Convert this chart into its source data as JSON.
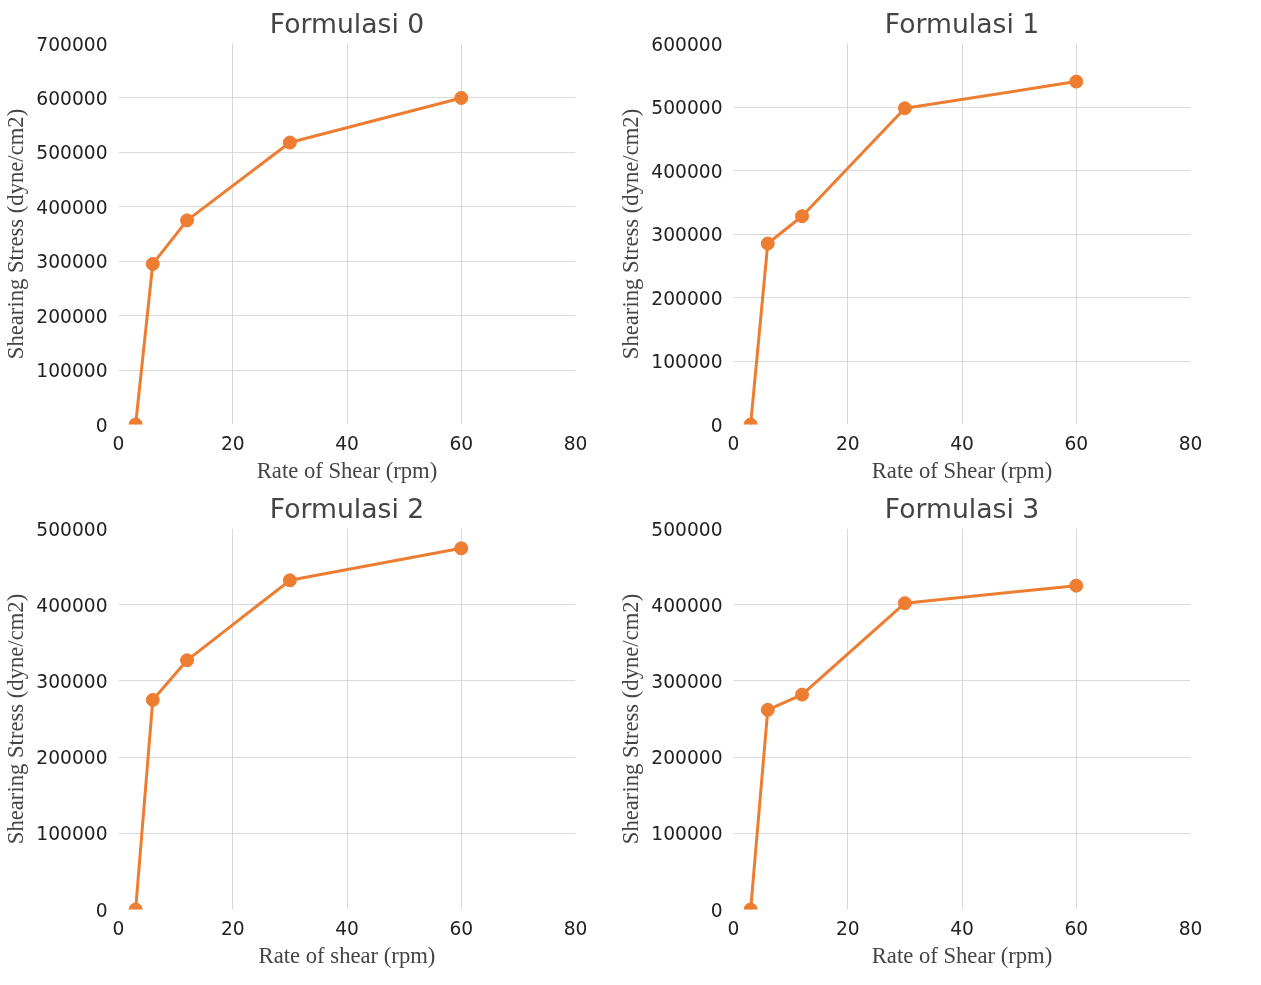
{
  "chart_data": [
    {
      "type": "line",
      "title": "Formulasi 0",
      "xlabel": "Rate of Shear (rpm)",
      "ylabel": "Shearing Stress (dyne/cm2)",
      "x": [
        3,
        6,
        12,
        30,
        60
      ],
      "xlim": [
        0,
        80
      ],
      "xticks": [
        0,
        20,
        40,
        60,
        80
      ],
      "ylim": [
        0,
        700000
      ],
      "yticks": [
        0,
        100000,
        200000,
        300000,
        400000,
        500000,
        600000,
        700000
      ],
      "grid": true,
      "marker": "circle",
      "series": [
        {
          "color": "#ed7d31",
          "values": [
            0,
            295000,
            375000,
            518000,
            600000
          ]
        }
      ]
    },
    {
      "type": "line",
      "title": "Formulasi 1",
      "xlabel": "Rate of Shear (rpm)",
      "ylabel": "Shearing Stress (dyne/cm2)",
      "x": [
        3,
        6,
        12,
        30,
        60
      ],
      "xlim": [
        0,
        80
      ],
      "xticks": [
        0,
        20,
        40,
        60,
        80
      ],
      "ylim": [
        0,
        600000
      ],
      "yticks": [
        0,
        100000,
        200000,
        300000,
        400000,
        500000,
        600000
      ],
      "grid": true,
      "marker": "circle",
      "series": [
        {
          "color": "#ed7d31",
          "values": [
            0,
            285000,
            328000,
            498000,
            540000
          ]
        }
      ]
    },
    {
      "type": "line",
      "title": "Formulasi 2",
      "xlabel": "Rate of shear (rpm)",
      "ylabel": "Shearing Stress (dyne/cm2)",
      "x": [
        3,
        6,
        12,
        30,
        60
      ],
      "xlim": [
        0,
        80
      ],
      "xticks": [
        0,
        20,
        40,
        60,
        80
      ],
      "ylim": [
        0,
        500000
      ],
      "yticks": [
        0,
        100000,
        200000,
        300000,
        400000,
        500000
      ],
      "grid": true,
      "marker": "circle",
      "series": [
        {
          "color": "#ed7d31",
          "values": [
            0,
            275000,
            327000,
            432000,
            474000
          ]
        }
      ]
    },
    {
      "type": "line",
      "title": "Formulasi 3",
      "xlabel": "Rate of Shear (rpm)",
      "ylabel": "Shearing Stress (dyne/cm2)",
      "x": [
        3,
        6,
        12,
        30,
        60
      ],
      "xlim": [
        0,
        80
      ],
      "xticks": [
        0,
        20,
        40,
        60,
        80
      ],
      "ylim": [
        0,
        500000
      ],
      "yticks": [
        0,
        100000,
        200000,
        300000,
        400000,
        500000
      ],
      "grid": true,
      "marker": "circle",
      "series": [
        {
          "color": "#ed7d31",
          "values": [
            0,
            262000,
            282000,
            402000,
            425000
          ]
        }
      ]
    }
  ]
}
